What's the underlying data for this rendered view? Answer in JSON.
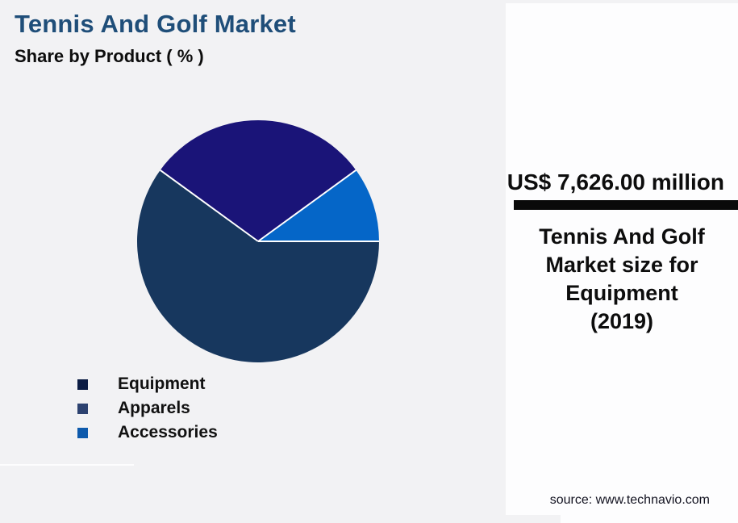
{
  "header": {
    "title": "Tennis And Golf Market",
    "subtitle": "Share by Product ( % )"
  },
  "chart_data": {
    "type": "pie",
    "title": "Tennis And Golf Market Share by Product (%)",
    "categories": [
      "Equipment",
      "Apparels",
      "Accessories"
    ],
    "values": [
      60,
      30,
      10
    ],
    "unit": "%",
    "start_angle_deg": 0,
    "direction": "clockwise-from-east",
    "slice_colors": [
      "#17375e",
      "#1a1478",
      "#0566c8"
    ],
    "legend_colors": [
      "#0c1c44",
      "#2d4270",
      "#0e5aac"
    ],
    "slice_border_color": "#ffffff",
    "legend_position": "bottom-left"
  },
  "callout": {
    "value": "US$ 7,626.00 million",
    "description": "Tennis And Golf\nMarket size for\nEquipment\n(2019)"
  },
  "source": {
    "text": "source: www.technavio.com"
  },
  "colors": {
    "background": "#f2f2f4",
    "panel": "#fdfdfe",
    "title": "#1f4e79",
    "divider_rule": "#0a0a0a",
    "text": "#0d0d0d"
  }
}
